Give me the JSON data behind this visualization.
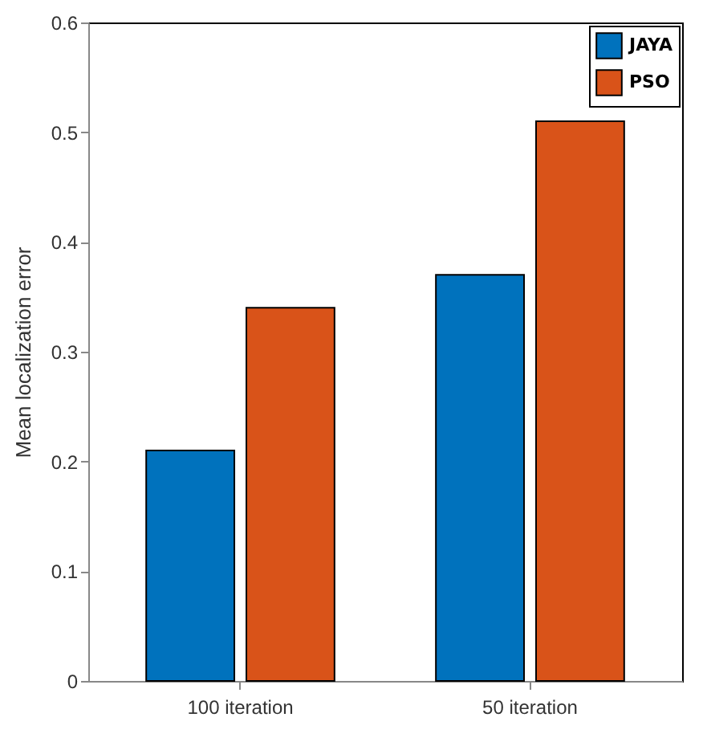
{
  "chart_data": {
    "type": "bar",
    "ylabel": "Mean localization error",
    "categories": [
      "100 iteration",
      "50 iteration"
    ],
    "series": [
      {
        "name": "JAYA",
        "color": "#0072bd",
        "values": [
          0.21,
          0.37
        ]
      },
      {
        "name": "PSO",
        "color": "#d95319",
        "values": [
          0.34,
          0.51
        ]
      }
    ],
    "ylim": [
      0,
      0.6
    ],
    "yticks": [
      0,
      0.1,
      0.2,
      0.3,
      0.4,
      0.5,
      0.6
    ],
    "grid": false,
    "legend": "top right"
  }
}
